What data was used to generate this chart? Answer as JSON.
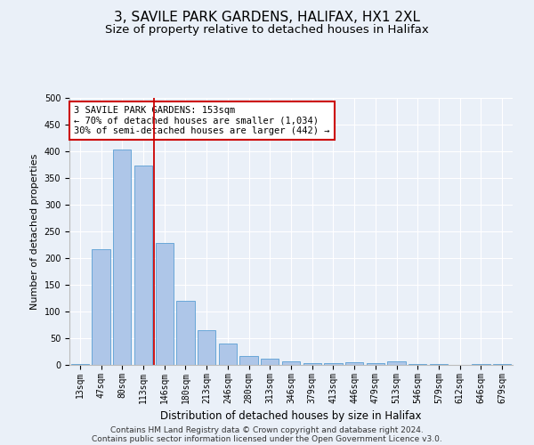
{
  "title": "3, SAVILE PARK GARDENS, HALIFAX, HX1 2XL",
  "subtitle": "Size of property relative to detached houses in Halifax",
  "xlabel": "Distribution of detached houses by size in Halifax",
  "ylabel": "Number of detached properties",
  "categories": [
    "13sqm",
    "47sqm",
    "80sqm",
    "113sqm",
    "146sqm",
    "180sqm",
    "213sqm",
    "246sqm",
    "280sqm",
    "313sqm",
    "346sqm",
    "379sqm",
    "413sqm",
    "446sqm",
    "479sqm",
    "513sqm",
    "546sqm",
    "579sqm",
    "612sqm",
    "646sqm",
    "679sqm"
  ],
  "values": [
    2,
    216,
    404,
    374,
    228,
    120,
    65,
    40,
    17,
    12,
    6,
    3,
    3,
    5,
    3,
    6,
    1,
    1,
    0,
    1,
    1
  ],
  "bar_color": "#aec6e8",
  "bar_edge_color": "#5a9fd4",
  "vline_color": "#cc0000",
  "vline_pos": 3.5,
  "annotation_text": "3 SAVILE PARK GARDENS: 153sqm\n← 70% of detached houses are smaller (1,034)\n30% of semi-detached houses are larger (442) →",
  "annotation_box_color": "white",
  "annotation_box_edge": "#cc0000",
  "ylim": [
    0,
    500
  ],
  "yticks": [
    0,
    50,
    100,
    150,
    200,
    250,
    300,
    350,
    400,
    450,
    500
  ],
  "bg_color": "#eaf0f8",
  "grid_color": "#ffffff",
  "footer_line1": "Contains HM Land Registry data © Crown copyright and database right 2024.",
  "footer_line2": "Contains public sector information licensed under the Open Government Licence v3.0.",
  "title_fontsize": 11,
  "subtitle_fontsize": 9.5,
  "xlabel_fontsize": 8.5,
  "ylabel_fontsize": 8,
  "tick_fontsize": 7,
  "footer_fontsize": 6.5,
  "annot_fontsize": 7.5
}
